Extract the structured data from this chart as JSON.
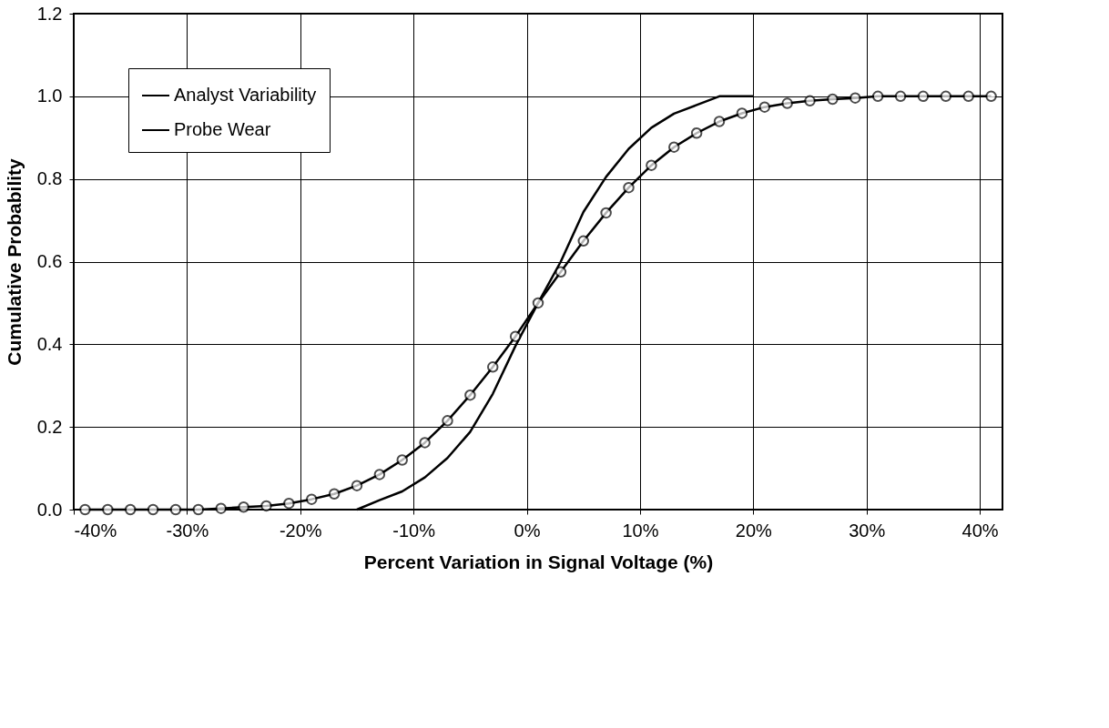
{
  "chart_data": {
    "type": "line",
    "xlabel": "Percent Variation in Signal Voltage (%)",
    "ylabel": "Cumulative Probability",
    "xlim": [
      -40,
      42
    ],
    "ylim": [
      0,
      1.2
    ],
    "xticks": [
      {
        "value": -40,
        "label": "-40%"
      },
      {
        "value": -30,
        "label": "-30%"
      },
      {
        "value": -20,
        "label": "-20%"
      },
      {
        "value": -10,
        "label": "-10%"
      },
      {
        "value": 0,
        "label": "0%"
      },
      {
        "value": 10,
        "label": "10%"
      },
      {
        "value": 20,
        "label": "20%"
      },
      {
        "value": 30,
        "label": "30%"
      },
      {
        "value": 40,
        "label": "40%"
      }
    ],
    "yticks": [
      {
        "value": 0,
        "label": "0.0"
      },
      {
        "value": 0.2,
        "label": "0.2"
      },
      {
        "value": 0.4,
        "label": "0.4"
      },
      {
        "value": 0.6,
        "label": "0.6"
      },
      {
        "value": 0.8,
        "label": "0.8"
      },
      {
        "value": 1,
        "label": "1.0"
      },
      {
        "value": 1.2,
        "label": "1.2"
      }
    ],
    "grid": true,
    "legend": "top left",
    "line_style": "solid",
    "series": [
      {
        "name": "Analyst Variability",
        "color": "#000000",
        "marker": "circle",
        "x": [
          -39,
          -37,
          -35,
          -33,
          -31,
          -29,
          -27,
          -25,
          -23,
          -21,
          -19,
          -17,
          -15,
          -13,
          -11,
          -9,
          -7,
          -5,
          -3,
          -1,
          1,
          3,
          5,
          7,
          9,
          11,
          13,
          15,
          17,
          19,
          21,
          23,
          25,
          27,
          29,
          31,
          33,
          35,
          37,
          39,
          41
        ],
        "values": [
          0,
          0,
          0,
          0,
          0,
          0,
          0.003,
          0.006,
          0.009,
          0.015,
          0.025,
          0.038,
          0.058,
          0.085,
          0.12,
          0.162,
          0.215,
          0.277,
          0.345,
          0.419,
          0.5,
          0.575,
          0.65,
          0.718,
          0.779,
          0.833,
          0.877,
          0.911,
          0.939,
          0.959,
          0.974,
          0.983,
          0.989,
          0.993,
          0.996,
          1,
          1,
          1,
          1,
          1,
          1
        ]
      },
      {
        "name": "Probe Wear",
        "color": "#000000",
        "marker": "none",
        "x": [
          -15,
          -13,
          -11,
          -9,
          -7,
          -5,
          -3,
          -1,
          1,
          3,
          5,
          7,
          9,
          11,
          13,
          15,
          17,
          20
        ],
        "values": [
          0,
          0.023,
          0.044,
          0.078,
          0.125,
          0.188,
          0.28,
          0.396,
          0.5,
          0.6,
          0.72,
          0.805,
          0.873,
          0.924,
          0.958,
          0.979,
          1,
          1
        ]
      }
    ]
  }
}
